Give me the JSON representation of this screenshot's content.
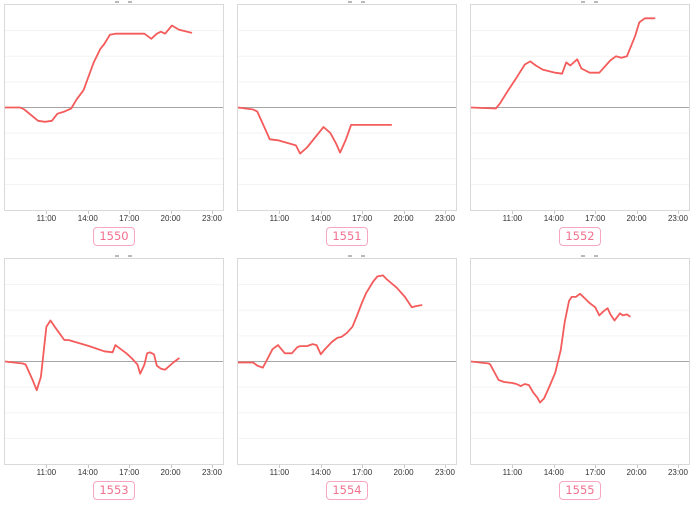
{
  "colors": {
    "line": "#f45b5b",
    "zero_line": "#a6a6a6",
    "grid_line": "#f3f3f3",
    "box_border": "#d9d9d9",
    "tick_text": "#333333",
    "badge_border": "#f7a8c0",
    "badge_text": "#f2708f"
  },
  "chart_data": [
    {
      "type": "line",
      "label": "1550",
      "title": "",
      "x_domain": [
        8,
        23.8
      ],
      "ylim": [
        -1,
        1
      ],
      "x_ticks": [
        11,
        14,
        17,
        20,
        23
      ],
      "x_tick_labels": [
        "11:00",
        "14:00",
        "17:00",
        "20:00",
        "23:00"
      ],
      "grid_values": [
        0.75,
        0.5,
        0.25,
        -0.25,
        -0.5,
        -0.75
      ],
      "zero_line": true,
      "series": [
        {
          "name": "1550",
          "points": [
            [
              8.0,
              0
            ],
            [
              9.1,
              0
            ],
            [
              9.4,
              -0.02
            ],
            [
              10.4,
              -0.13
            ],
            [
              10.9,
              -0.14
            ],
            [
              11.4,
              -0.13
            ],
            [
              11.8,
              -0.06
            ],
            [
              12.3,
              -0.04
            ],
            [
              12.8,
              -0.01
            ],
            [
              13.2,
              0.08
            ],
            [
              13.7,
              0.17
            ],
            [
              14.4,
              0.43
            ],
            [
              14.9,
              0.57
            ],
            [
              15.2,
              0.62
            ],
            [
              15.6,
              0.71
            ],
            [
              16.0,
              0.72
            ],
            [
              18.1,
              0.72
            ],
            [
              18.6,
              0.67
            ],
            [
              19.0,
              0.72
            ],
            [
              19.3,
              0.74
            ],
            [
              19.6,
              0.72
            ],
            [
              20.1,
              0.8
            ],
            [
              20.6,
              0.76
            ],
            [
              21.5,
              0.73
            ]
          ]
        }
      ]
    },
    {
      "type": "line",
      "label": "1551",
      "title": "",
      "x_domain": [
        8,
        23.8
      ],
      "ylim": [
        -1,
        1
      ],
      "x_ticks": [
        11,
        14,
        17,
        20,
        23
      ],
      "x_tick_labels": [
        "11:00",
        "14:00",
        "17:00",
        "20:00",
        "23:00"
      ],
      "grid_values": [
        0.75,
        0.5,
        0.25,
        -0.25,
        -0.5,
        -0.75
      ],
      "zero_line": true,
      "series": [
        {
          "name": "1551",
          "points": [
            [
              8.0,
              0
            ],
            [
              9.1,
              -0.02
            ],
            [
              9.4,
              -0.04
            ],
            [
              10.0,
              -0.22
            ],
            [
              10.3,
              -0.31
            ],
            [
              10.9,
              -0.32
            ],
            [
              12.2,
              -0.37
            ],
            [
              12.5,
              -0.45
            ],
            [
              13.0,
              -0.39
            ],
            [
              14.2,
              -0.19
            ],
            [
              14.7,
              -0.25
            ],
            [
              15.1,
              -0.35
            ],
            [
              15.4,
              -0.44
            ],
            [
              15.8,
              -0.32
            ],
            [
              16.2,
              -0.17
            ],
            [
              19.1,
              -0.17
            ]
          ]
        }
      ]
    },
    {
      "type": "line",
      "label": "1552",
      "title": "",
      "x_domain": [
        8,
        23.8
      ],
      "ylim": [
        -1,
        1
      ],
      "x_ticks": [
        11,
        14,
        17,
        20,
        23
      ],
      "x_tick_labels": [
        "11:00",
        "14:00",
        "17:00",
        "20:00",
        "23:00"
      ],
      "grid_values": [
        0.75,
        0.5,
        0.25,
        -0.25,
        -0.5,
        -0.75
      ],
      "zero_line": true,
      "series": [
        {
          "name": "1552",
          "points": [
            [
              8.0,
              0
            ],
            [
              9.8,
              -0.01
            ],
            [
              10.1,
              0.04
            ],
            [
              10.7,
              0.17
            ],
            [
              11.2,
              0.27
            ],
            [
              11.9,
              0.42
            ],
            [
              12.3,
              0.45
            ],
            [
              12.7,
              0.41
            ],
            [
              13.2,
              0.37
            ],
            [
              14.1,
              0.34
            ],
            [
              14.6,
              0.33
            ],
            [
              14.9,
              0.44
            ],
            [
              15.2,
              0.41
            ],
            [
              15.7,
              0.47
            ],
            [
              16.0,
              0.38
            ],
            [
              16.6,
              0.34
            ],
            [
              17.3,
              0.34
            ],
            [
              18.1,
              0.46
            ],
            [
              18.5,
              0.5
            ],
            [
              18.9,
              0.485
            ],
            [
              19.3,
              0.5
            ],
            [
              19.9,
              0.7
            ],
            [
              20.2,
              0.83
            ],
            [
              20.6,
              0.87
            ],
            [
              21.3,
              0.87
            ]
          ]
        }
      ]
    },
    {
      "type": "line",
      "label": "1553",
      "title": "",
      "x_domain": [
        8,
        23.8
      ],
      "ylim": [
        -1,
        1
      ],
      "x_ticks": [
        11,
        14,
        17,
        20,
        23
      ],
      "x_tick_labels": [
        "11:00",
        "14:00",
        "17:00",
        "20:00",
        "23:00"
      ],
      "grid_values": [
        0.75,
        0.5,
        0.25,
        -0.25,
        -0.5,
        -0.75
      ],
      "zero_line": true,
      "series": [
        {
          "name": "1553",
          "points": [
            [
              8.0,
              0
            ],
            [
              9.3,
              -0.02
            ],
            [
              9.5,
              -0.03
            ],
            [
              10.0,
              -0.18
            ],
            [
              10.3,
              -0.28
            ],
            [
              10.6,
              -0.15
            ],
            [
              11.0,
              0.34
            ],
            [
              11.3,
              0.4
            ],
            [
              11.6,
              0.34
            ],
            [
              12.3,
              0.21
            ],
            [
              12.6,
              0.21
            ],
            [
              14.1,
              0.15
            ],
            [
              15.2,
              0.1
            ],
            [
              15.8,
              0.09
            ],
            [
              16.0,
              0.16
            ],
            [
              16.3,
              0.13
            ],
            [
              16.8,
              0.08
            ],
            [
              17.2,
              0.03
            ],
            [
              17.6,
              -0.03
            ],
            [
              17.8,
              -0.12
            ],
            [
              18.1,
              -0.03
            ],
            [
              18.3,
              0.08
            ],
            [
              18.5,
              0.09
            ],
            [
              18.8,
              0.07
            ],
            [
              19.0,
              -0.04
            ],
            [
              19.3,
              -0.07
            ],
            [
              19.6,
              -0.08
            ],
            [
              20.2,
              -0.01
            ],
            [
              20.6,
              0.03
            ]
          ]
        }
      ]
    },
    {
      "type": "line",
      "label": "1554",
      "title": "",
      "x_domain": [
        8,
        23.8
      ],
      "ylim": [
        -1,
        1
      ],
      "x_ticks": [
        11,
        14,
        17,
        20,
        23
      ],
      "x_tick_labels": [
        "11:00",
        "14:00",
        "17:00",
        "20:00",
        "23:00"
      ],
      "grid_values": [
        0.75,
        0.5,
        0.25,
        -0.25,
        -0.5,
        -0.75
      ],
      "zero_line": true,
      "series": [
        {
          "name": "1554",
          "points": [
            [
              8.0,
              -0.01
            ],
            [
              9.1,
              -0.01
            ],
            [
              9.4,
              -0.04
            ],
            [
              9.8,
              -0.06
            ],
            [
              10.0,
              -0.01
            ],
            [
              10.5,
              0.12
            ],
            [
              10.9,
              0.16
            ],
            [
              11.2,
              0.11
            ],
            [
              11.4,
              0.08
            ],
            [
              11.9,
              0.08
            ],
            [
              12.3,
              0.14
            ],
            [
              12.5,
              0.15
            ],
            [
              13.0,
              0.15
            ],
            [
              13.4,
              0.17
            ],
            [
              13.7,
              0.16
            ],
            [
              14.0,
              0.07
            ],
            [
              14.3,
              0.12
            ],
            [
              14.8,
              0.19
            ],
            [
              15.2,
              0.23
            ],
            [
              15.5,
              0.24
            ],
            [
              15.9,
              0.28
            ],
            [
              16.3,
              0.34
            ],
            [
              16.6,
              0.44
            ],
            [
              17.0,
              0.58
            ],
            [
              17.3,
              0.67
            ],
            [
              17.8,
              0.78
            ],
            [
              18.1,
              0.83
            ],
            [
              18.5,
              0.84
            ],
            [
              18.8,
              0.8
            ],
            [
              19.5,
              0.72
            ],
            [
              20.1,
              0.63
            ],
            [
              20.6,
              0.53
            ],
            [
              20.9,
              0.54
            ],
            [
              21.3,
              0.55
            ]
          ]
        }
      ]
    },
    {
      "type": "line",
      "label": "1555",
      "title": "",
      "x_domain": [
        8,
        23.8
      ],
      "ylim": [
        -1,
        1
      ],
      "x_ticks": [
        11,
        14,
        17,
        20,
        23
      ],
      "x_tick_labels": [
        "11:00",
        "14:00",
        "17:00",
        "20:00",
        "23:00"
      ],
      "grid_values": [
        0.75,
        0.5,
        0.25,
        -0.25,
        -0.5,
        -0.75
      ],
      "zero_line": true,
      "series": [
        {
          "name": "1555",
          "points": [
            [
              8.0,
              0
            ],
            [
              9.3,
              -0.02
            ],
            [
              9.4,
              -0.03
            ],
            [
              10.0,
              -0.18
            ],
            [
              10.4,
              -0.2
            ],
            [
              11.0,
              -0.21
            ],
            [
              11.3,
              -0.22
            ],
            [
              11.6,
              -0.24
            ],
            [
              11.9,
              -0.22
            ],
            [
              12.2,
              -0.23
            ],
            [
              12.5,
              -0.3
            ],
            [
              12.8,
              -0.35
            ],
            [
              13.0,
              -0.4
            ],
            [
              13.3,
              -0.36
            ],
            [
              13.7,
              -0.24
            ],
            [
              14.1,
              -0.11
            ],
            [
              14.5,
              0.11
            ],
            [
              14.8,
              0.39
            ],
            [
              15.1,
              0.59
            ],
            [
              15.3,
              0.63
            ],
            [
              15.6,
              0.63
            ],
            [
              15.9,
              0.66
            ],
            [
              16.3,
              0.61
            ],
            [
              16.6,
              0.57
            ],
            [
              17.0,
              0.53
            ],
            [
              17.3,
              0.45
            ],
            [
              17.6,
              0.49
            ],
            [
              17.9,
              0.52
            ],
            [
              18.1,
              0.46
            ],
            [
              18.4,
              0.4
            ],
            [
              18.8,
              0.47
            ],
            [
              19.0,
              0.45
            ],
            [
              19.3,
              0.46
            ],
            [
              19.5,
              0.44
            ]
          ]
        }
      ]
    }
  ]
}
